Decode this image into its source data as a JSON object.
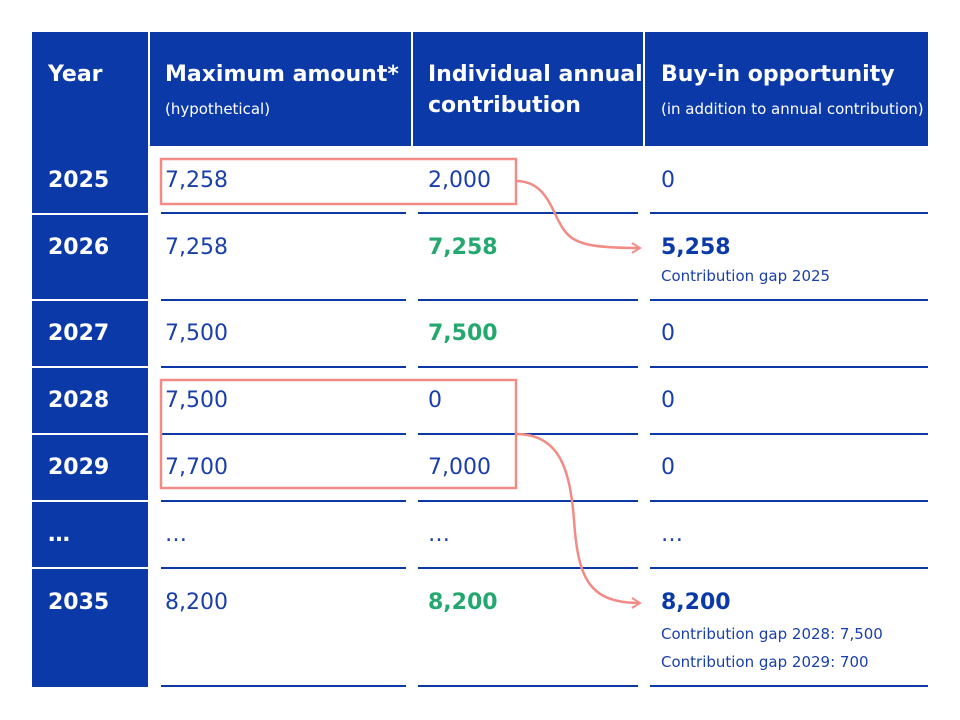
{
  "headers": {
    "year": "Year",
    "max_amount": "Maximum amount*",
    "max_amount_sub": "(hypothetical)",
    "individual_line1": "Individual annual",
    "individual_line2": "contribution",
    "buyin": "Buy-in opportunity",
    "buyin_sub": "(in addition to annual contribution)"
  },
  "rows": [
    {
      "year": "2025",
      "max": "7,258",
      "contribution": "2,000",
      "buyin": "0",
      "notes": []
    },
    {
      "year": "2026",
      "max": "7,258",
      "contribution": "7,258",
      "buyin": "5,258",
      "notes": [
        "Contribution gap 2025"
      ]
    },
    {
      "year": "2027",
      "max": "7,500",
      "contribution": "7,500",
      "buyin": "0",
      "notes": []
    },
    {
      "year": "2028",
      "max": "7,500",
      "contribution": "0",
      "buyin": "0",
      "notes": []
    },
    {
      "year": "2029",
      "max": "7,700",
      "contribution": "7,000",
      "buyin": "0",
      "notes": []
    },
    {
      "year": "…",
      "max": "…",
      "contribution": "…",
      "buyin": "…",
      "notes": []
    },
    {
      "year": "2035",
      "max": "8,200",
      "contribution": "8,200",
      "buyin": "8,200",
      "notes": [
        "Contribution gap 2028: 7,500",
        "Contribution gap 2029: 700"
      ]
    }
  ],
  "colors": {
    "header_blue": "#0b3aa8",
    "text_blue": "#1a3fa8",
    "green": "#25a870",
    "highlight_red": "#f28b86"
  }
}
